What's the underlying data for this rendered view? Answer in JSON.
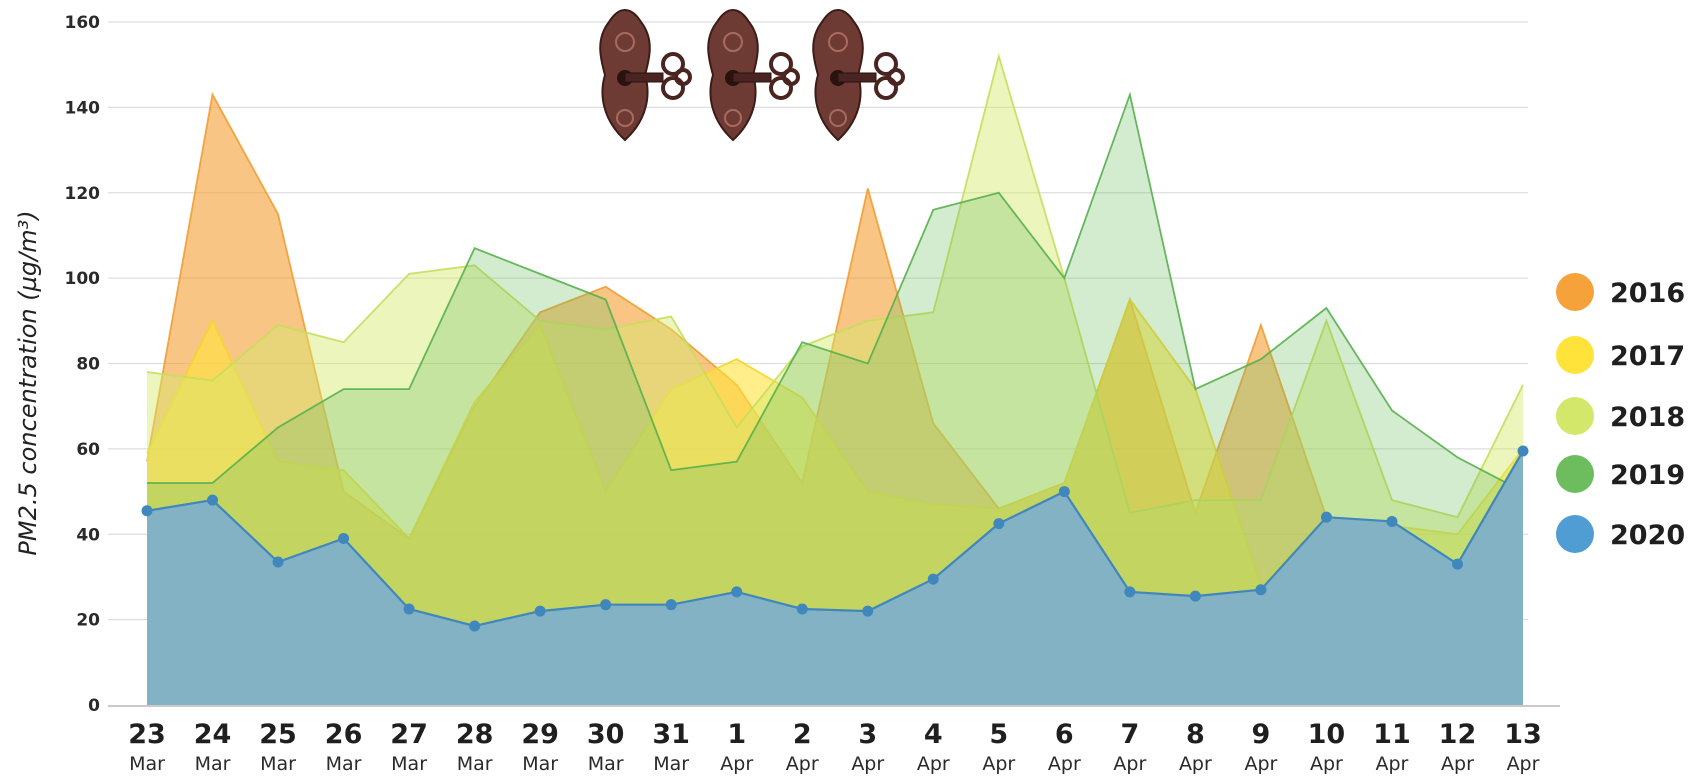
{
  "chart_data": {
    "type": "area",
    "ylabel": "PM2.5 concentration (µg/m³)",
    "ylim": [
      0,
      160
    ],
    "yticks": [
      0,
      20,
      40,
      60,
      80,
      100,
      120,
      140,
      160
    ],
    "grid": true,
    "legend_position": "right",
    "categories": [
      {
        "day": "23",
        "month": "Mar"
      },
      {
        "day": "24",
        "month": "Mar"
      },
      {
        "day": "25",
        "month": "Mar"
      },
      {
        "day": "26",
        "month": "Mar"
      },
      {
        "day": "27",
        "month": "Mar"
      },
      {
        "day": "28",
        "month": "Mar"
      },
      {
        "day": "29",
        "month": "Mar"
      },
      {
        "day": "30",
        "month": "Mar"
      },
      {
        "day": "31",
        "month": "Mar"
      },
      {
        "day": "1",
        "month": "Apr"
      },
      {
        "day": "2",
        "month": "Apr"
      },
      {
        "day": "3",
        "month": "Apr"
      },
      {
        "day": "4",
        "month": "Apr"
      },
      {
        "day": "5",
        "month": "Apr"
      },
      {
        "day": "6",
        "month": "Apr"
      },
      {
        "day": "7",
        "month": "Apr"
      },
      {
        "day": "8",
        "month": "Apr"
      },
      {
        "day": "9",
        "month": "Apr"
      },
      {
        "day": "10",
        "month": "Apr"
      },
      {
        "day": "11",
        "month": "Apr"
      },
      {
        "day": "12",
        "month": "Apr"
      },
      {
        "day": "13",
        "month": "Apr"
      }
    ],
    "series": [
      {
        "name": "2016",
        "color": "#f6a23a",
        "values": [
          57,
          143,
          115,
          50,
          39,
          70,
          92,
          98,
          88,
          75,
          52,
          121,
          66,
          46,
          52,
          95,
          45,
          89,
          44,
          43,
          33,
          60
        ]
      },
      {
        "name": "2017",
        "color": "#ffe23a",
        "values": [
          59,
          90,
          57,
          55,
          39,
          71,
          89,
          50,
          74,
          81,
          72,
          50,
          47,
          46,
          52,
          95,
          74,
          28,
          44,
          42,
          40,
          60
        ]
      },
      {
        "name": "2018",
        "color": "#d3e86a",
        "values": [
          78,
          76,
          89,
          85,
          101,
          103,
          90,
          88,
          91,
          65,
          84,
          90,
          92,
          152,
          100,
          45,
          48,
          48,
          90,
          48,
          44,
          75
        ]
      },
      {
        "name": "2019",
        "color": "#6dbd5f",
        "values": [
          52,
          52,
          65,
          74,
          74,
          107,
          101,
          95,
          55,
          57,
          85,
          80,
          116,
          120,
          100,
          143,
          74,
          81,
          93,
          69,
          58,
          50
        ]
      },
      {
        "name": "2020",
        "color": "#4f9dd3",
        "values": [
          45.5,
          48,
          33.5,
          39,
          22.5,
          18.5,
          22,
          23.5,
          23.5,
          26.5,
          22.5,
          22,
          29.5,
          42.5,
          50,
          26.5,
          25.5,
          27,
          44,
          43,
          33,
          59.5
        ]
      }
    ]
  },
  "decoration": {
    "icon": "ornate-key-lock-icon",
    "count": 3
  }
}
